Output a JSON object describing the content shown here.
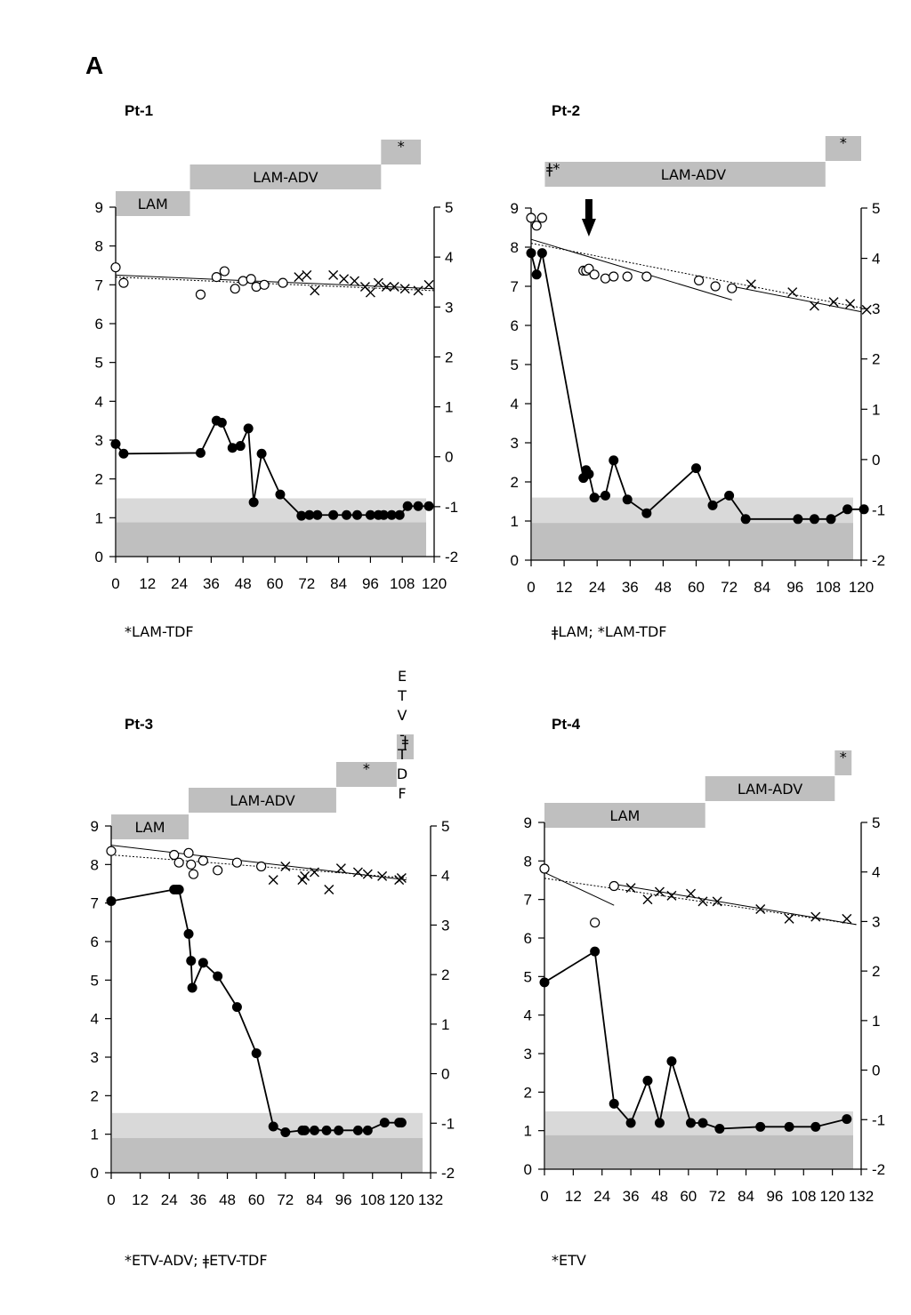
{
  "figure": {
    "panel_label": "A"
  },
  "chart_data": [
    {
      "type": "scatter",
      "title": "Pt-1",
      "footnote": "*LAM-TDF",
      "x_ticks": [
        0,
        12,
        24,
        36,
        48,
        60,
        72,
        84,
        96,
        108,
        120
      ],
      "xlim": [
        0,
        120
      ],
      "y_left_ticks": [
        0,
        1,
        2,
        3,
        4,
        5,
        6,
        7,
        8,
        9
      ],
      "ylim_left": [
        0,
        9
      ],
      "y_right_ticks": [
        -2,
        -1,
        0,
        1,
        2,
        3,
        4,
        5
      ],
      "ylim_right": [
        -2,
        5
      ],
      "bands": [
        {
          "y0": 0,
          "y1": 1.5,
          "color": "#d9d9d9"
        },
        {
          "y0": 0,
          "y1": 0.88,
          "color": "#bfbfbf"
        }
      ],
      "therapy_bars": [
        {
          "label": "LAM",
          "start": 0,
          "end": 28,
          "row": 0
        },
        {
          "label": "LAM-ADV",
          "start": 28,
          "end": 100,
          "row": 1
        },
        {
          "label": "*",
          "start": 100,
          "end": 115,
          "row": 2
        }
      ],
      "series": [
        {
          "marker": "open-circle",
          "axis": "left",
          "x": [
            0,
            3,
            32,
            38,
            41,
            45,
            48,
            51,
            53,
            56,
            63
          ],
          "y": [
            7.45,
            7.05,
            6.75,
            7.2,
            7.35,
            6.9,
            7.1,
            7.15,
            6.95,
            7.0,
            7.05
          ]
        },
        {
          "marker": "cross",
          "axis": "left",
          "x": [
            69,
            72,
            75,
            82,
            86,
            90,
            94,
            96,
            99,
            102,
            105,
            109,
            114,
            118
          ],
          "y": [
            7.2,
            7.25,
            6.85,
            7.25,
            7.15,
            7.1,
            6.95,
            6.8,
            7.05,
            6.95,
            6.95,
            6.9,
            6.85,
            7.0
          ]
        },
        {
          "marker": "filled-circle",
          "axis": "left",
          "line": "solid",
          "x": [
            0,
            3,
            32,
            38,
            40,
            44,
            47,
            50,
            52,
            55,
            62,
            70,
            73,
            76,
            82,
            87,
            91,
            96,
            99,
            101,
            104,
            107,
            110,
            114,
            118
          ],
          "y": [
            2.9,
            2.65,
            2.67,
            3.5,
            3.45,
            2.8,
            2.85,
            3.3,
            1.4,
            2.65,
            1.6,
            1.05,
            1.07,
            1.07,
            1.07,
            1.07,
            1.07,
            1.07,
            1.07,
            1.07,
            1.07,
            1.07,
            1.3,
            1.3,
            1.3
          ]
        }
      ],
      "trendlines": [
        {
          "style": "solid",
          "x0": 0,
          "y0": 7.25,
          "x1": 120,
          "y1": 6.9
        },
        {
          "style": "dotted",
          "x0": 0,
          "y0": 7.2,
          "x1": 120,
          "y1": 6.85
        }
      ],
      "arrow": null
    },
    {
      "type": "scatter",
      "title": "Pt-2",
      "footnote": "ǂLAM; *LAM-TDF",
      "x_ticks": [
        0,
        12,
        24,
        36,
        48,
        60,
        72,
        84,
        96,
        108,
        120
      ],
      "xlim": [
        0,
        120
      ],
      "y_left_ticks": [
        0,
        1,
        2,
        3,
        4,
        5,
        6,
        7,
        8,
        9
      ],
      "ylim_left": [
        0,
        9
      ],
      "y_right_ticks": [
        -2,
        -1,
        0,
        1,
        2,
        3,
        4,
        5
      ],
      "ylim_right": [
        -2,
        5
      ],
      "bands": [
        {
          "y0": 0,
          "y1": 1.6,
          "color": "#d9d9d9"
        },
        {
          "y0": 0,
          "y1": 0.95,
          "color": "#bfbfbf"
        }
      ],
      "therapy_bars": [
        {
          "label": "ǂ*",
          "start": 5,
          "end": 11,
          "row": 1
        },
        {
          "label": "LAM-ADV",
          "start": 11,
          "end": 107,
          "row": 1
        },
        {
          "label": "*",
          "start": 107,
          "end": 120,
          "row": 2
        }
      ],
      "series": [
        {
          "marker": "open-circle",
          "axis": "left",
          "x": [
            0,
            2,
            4,
            19,
            20,
            21,
            23,
            27,
            30,
            35,
            42,
            61,
            67,
            73
          ],
          "y": [
            8.75,
            8.55,
            8.75,
            7.4,
            7.4,
            7.45,
            7.3,
            7.2,
            7.25,
            7.25,
            7.25,
            7.15,
            7.0,
            6.95
          ]
        },
        {
          "marker": "cross",
          "axis": "left",
          "x": [
            80,
            95,
            103,
            110,
            116,
            122
          ],
          "y": [
            7.05,
            6.85,
            6.5,
            6.6,
            6.55,
            6.4
          ]
        },
        {
          "marker": "filled-circle",
          "axis": "left",
          "line": "solid",
          "x": [
            0,
            2,
            4,
            19,
            20,
            21,
            23,
            27,
            30,
            35,
            42,
            60,
            66,
            72,
            78,
            97,
            103,
            109,
            115,
            121
          ],
          "y": [
            7.85,
            7.3,
            7.85,
            2.1,
            2.3,
            2.2,
            1.6,
            1.65,
            2.55,
            1.55,
            1.2,
            2.35,
            1.4,
            1.65,
            1.05,
            1.05,
            1.05,
            1.05,
            1.3,
            1.3
          ]
        }
      ],
      "trendlines": [
        {
          "style": "solid",
          "x0": 0,
          "y0": 8.2,
          "x1": 73,
          "y1": 6.65
        },
        {
          "style": "dotted",
          "x0": 0,
          "y0": 8.1,
          "x1": 120,
          "y1": 6.45
        },
        {
          "style": "solid",
          "x0": 73,
          "y0": 7.0,
          "x1": 120,
          "y1": 6.35
        }
      ],
      "arrow": {
        "x": 21
      }
    },
    {
      "type": "scatter",
      "title": "Pt-3",
      "footnote": "*ETV-ADV; ǂETV-TDF",
      "x_ticks": [
        0,
        12,
        24,
        36,
        48,
        60,
        72,
        84,
        96,
        108,
        120,
        132
      ],
      "xlim": [
        0,
        132
      ],
      "y_left_ticks": [
        0,
        1,
        2,
        3,
        4,
        5,
        6,
        7,
        8,
        9
      ],
      "ylim_left": [
        0,
        9
      ],
      "y_right_ticks": [
        -2,
        -1,
        0,
        1,
        2,
        3,
        4,
        5
      ],
      "ylim_right": [
        -2,
        5
      ],
      "bands": [
        {
          "y0": 0,
          "y1": 1.55,
          "color": "#d9d9d9"
        },
        {
          "y0": 0,
          "y1": 0.9,
          "color": "#bfbfbf"
        }
      ],
      "therapy_bars": [
        {
          "label": "LAM",
          "start": 0,
          "end": 32,
          "row": 0
        },
        {
          "label": "LAM-ADV",
          "start": 32,
          "end": 93,
          "row": 1
        },
        {
          "label": "*",
          "start": 93,
          "end": 118,
          "row": 2
        },
        {
          "label": "ǂ",
          "start": 118,
          "end": 125,
          "row": 3
        }
      ],
      "vertical_note": "ETV-TDF",
      "series": [
        {
          "marker": "open-circle",
          "axis": "left",
          "x": [
            0,
            26,
            28,
            32,
            33,
            34,
            38,
            44,
            52,
            62
          ],
          "y": [
            8.35,
            8.25,
            8.05,
            8.3,
            8.0,
            7.75,
            8.1,
            7.85,
            8.05,
            7.95
          ]
        },
        {
          "marker": "cross",
          "axis": "left",
          "x": [
            67,
            72,
            79,
            80,
            84,
            90,
            95,
            102,
            106,
            112,
            119,
            120
          ],
          "y": [
            7.6,
            7.95,
            7.6,
            7.7,
            7.8,
            7.35,
            7.9,
            7.8,
            7.75,
            7.7,
            7.6,
            7.65
          ]
        },
        {
          "marker": "filled-circle",
          "axis": "left",
          "line": "solid",
          "x": [
            0,
            26,
            27,
            28,
            32,
            33,
            33.5,
            38,
            44,
            52,
            60,
            67,
            72,
            79,
            80,
            84,
            89,
            94,
            102,
            106,
            113,
            119,
            120
          ],
          "y": [
            7.05,
            7.35,
            7.35,
            7.35,
            6.2,
            5.5,
            4.8,
            5.45,
            5.1,
            4.3,
            3.1,
            1.2,
            1.05,
            1.1,
            1.1,
            1.1,
            1.1,
            1.1,
            1.1,
            1.1,
            1.3,
            1.3,
            1.3
          ]
        }
      ],
      "trendlines": [
        {
          "style": "dotted",
          "x0": 0,
          "y0": 8.25,
          "x1": 122,
          "y1": 7.65
        },
        {
          "style": "solid",
          "x0": 0,
          "y0": 8.5,
          "x1": 122,
          "y1": 7.6
        }
      ],
      "arrow": null
    },
    {
      "type": "scatter",
      "title": "Pt-4",
      "footnote": "*ETV",
      "x_ticks": [
        0,
        12,
        24,
        36,
        48,
        60,
        72,
        84,
        96,
        108,
        120,
        132
      ],
      "xlim": [
        0,
        132
      ],
      "y_left_ticks": [
        0,
        1,
        2,
        3,
        4,
        5,
        6,
        7,
        8,
        9
      ],
      "ylim_left": [
        0,
        9
      ],
      "y_right_ticks": [
        -2,
        -1,
        0,
        1,
        2,
        3,
        4,
        5
      ],
      "ylim_right": [
        -2,
        5
      ],
      "bands": [
        {
          "y0": 0,
          "y1": 1.5,
          "color": "#d9d9d9"
        },
        {
          "y0": 0,
          "y1": 0.88,
          "color": "#bfbfbf"
        }
      ],
      "therapy_bars": [
        {
          "label": "LAM",
          "start": 0,
          "end": 67,
          "row": 0
        },
        {
          "label": "LAM-ADV",
          "start": 67,
          "end": 121,
          "row": 1
        },
        {
          "label": "*",
          "start": 121,
          "end": 128,
          "row": 2
        }
      ],
      "series": [
        {
          "marker": "open-circle",
          "axis": "left",
          "x": [
            0,
            21,
            29
          ],
          "y": [
            7.8,
            6.4,
            7.35
          ]
        },
        {
          "marker": "cross",
          "axis": "left",
          "x": [
            36,
            43,
            48,
            53,
            61,
            66,
            72,
            90,
            102,
            113,
            126
          ],
          "y": [
            7.3,
            7.0,
            7.2,
            7.1,
            7.15,
            6.95,
            6.95,
            6.75,
            6.5,
            6.55,
            6.5
          ]
        },
        {
          "marker": "filled-circle",
          "axis": "left",
          "line": "solid",
          "x": [
            0,
            21,
            29,
            36,
            43,
            48,
            53,
            61,
            66,
            73,
            90,
            102,
            113,
            126
          ],
          "y": [
            4.85,
            5.65,
            1.7,
            1.2,
            2.3,
            1.2,
            2.8,
            1.2,
            1.2,
            1.05,
            1.1,
            1.1,
            1.1,
            1.3
          ]
        }
      ],
      "trendlines": [
        {
          "style": "solid",
          "x0": 0,
          "y0": 7.7,
          "x1": 29,
          "y1": 6.85
        },
        {
          "style": "dotted",
          "x0": 0,
          "y0": 7.55,
          "x1": 130,
          "y1": 6.35
        },
        {
          "style": "solid",
          "x0": 29,
          "y0": 7.4,
          "x1": 130,
          "y1": 6.35
        }
      ],
      "arrow": null
    }
  ]
}
